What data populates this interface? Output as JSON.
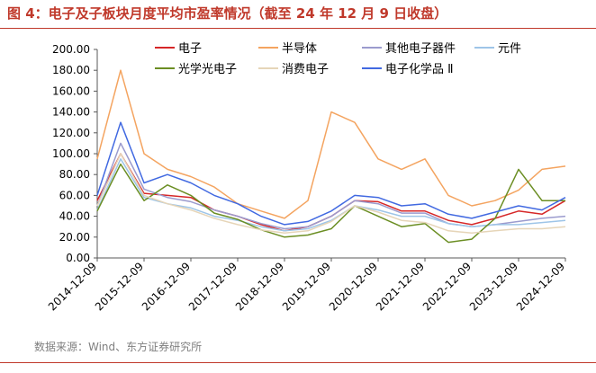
{
  "figure": {
    "title": "图 4：电子及子板块月度平均市盈率情况（截至 24 年 12 月 9 日收盘）",
    "source": "数据来源：Wind、东方证券研究所"
  },
  "chart_data": {
    "type": "line",
    "x": [
      "2014-12-09",
      "2015-06-09",
      "2015-12-09",
      "2016-06-09",
      "2016-12-09",
      "2017-06-09",
      "2017-12-09",
      "2018-06-09",
      "2018-12-09",
      "2019-06-09",
      "2019-12-09",
      "2020-06-09",
      "2020-12-09",
      "2021-06-09",
      "2021-12-09",
      "2022-06-09",
      "2022-12-09",
      "2023-06-09",
      "2023-12-09",
      "2024-06-09",
      "2024-12-09"
    ],
    "x_ticks": [
      "2014-12-09",
      "2015-12-09",
      "2016-12-09",
      "2017-12-09",
      "2018-12-09",
      "2019-12-09",
      "2020-12-09",
      "2021-12-09",
      "2022-12-09",
      "2023-12-09",
      "2024-12-09"
    ],
    "ylim": [
      0,
      200
    ],
    "y_ticks": [
      "0.00",
      "20.00",
      "40.00",
      "60.00",
      "80.00",
      "100.00",
      "120.00",
      "140.00",
      "160.00",
      "180.00",
      "200.00"
    ],
    "xlabel": "",
    "ylabel": "",
    "legend_position": "top",
    "series": [
      {
        "name": "电子",
        "color": "#d62728",
        "values": [
          55,
          100,
          62,
          60,
          58,
          46,
          40,
          32,
          26,
          30,
          40,
          55,
          54,
          45,
          45,
          36,
          32,
          38,
          45,
          42,
          55
        ]
      },
      {
        "name": "半导体",
        "color": "#f4a460",
        "values": [
          95,
          180,
          100,
          85,
          78,
          68,
          52,
          45,
          38,
          55,
          140,
          130,
          95,
          85,
          95,
          60,
          50,
          55,
          65,
          85,
          88
        ]
      },
      {
        "name": "其他电子器件",
        "color": "#9b9bce",
        "values": [
          50,
          110,
          66,
          58,
          54,
          46,
          40,
          33,
          28,
          30,
          40,
          55,
          52,
          43,
          43,
          33,
          30,
          32,
          35,
          38,
          40
        ]
      },
      {
        "name": "元件",
        "color": "#9ec5e8",
        "values": [
          46,
          95,
          58,
          52,
          48,
          40,
          36,
          30,
          26,
          28,
          36,
          50,
          46,
          40,
          40,
          33,
          30,
          32,
          32,
          34,
          36
        ]
      },
      {
        "name": "光学光电子",
        "color": "#6b8e23",
        "values": [
          45,
          90,
          55,
          70,
          60,
          43,
          37,
          27,
          20,
          22,
          28,
          50,
          40,
          30,
          33,
          15,
          18,
          38,
          85,
          55,
          55
        ]
      },
      {
        "name": "消费电子",
        "color": "#e6d5b8",
        "values": [
          50,
          100,
          60,
          52,
          46,
          38,
          32,
          27,
          24,
          26,
          35,
          50,
          44,
          36,
          34,
          26,
          24,
          26,
          28,
          28,
          30
        ]
      },
      {
        "name": "电子化学品 Ⅱ",
        "color": "#4169e1",
        "values": [
          60,
          130,
          72,
          80,
          72,
          60,
          52,
          40,
          32,
          35,
          45,
          60,
          58,
          50,
          52,
          42,
          38,
          44,
          50,
          46,
          58
        ]
      }
    ]
  }
}
